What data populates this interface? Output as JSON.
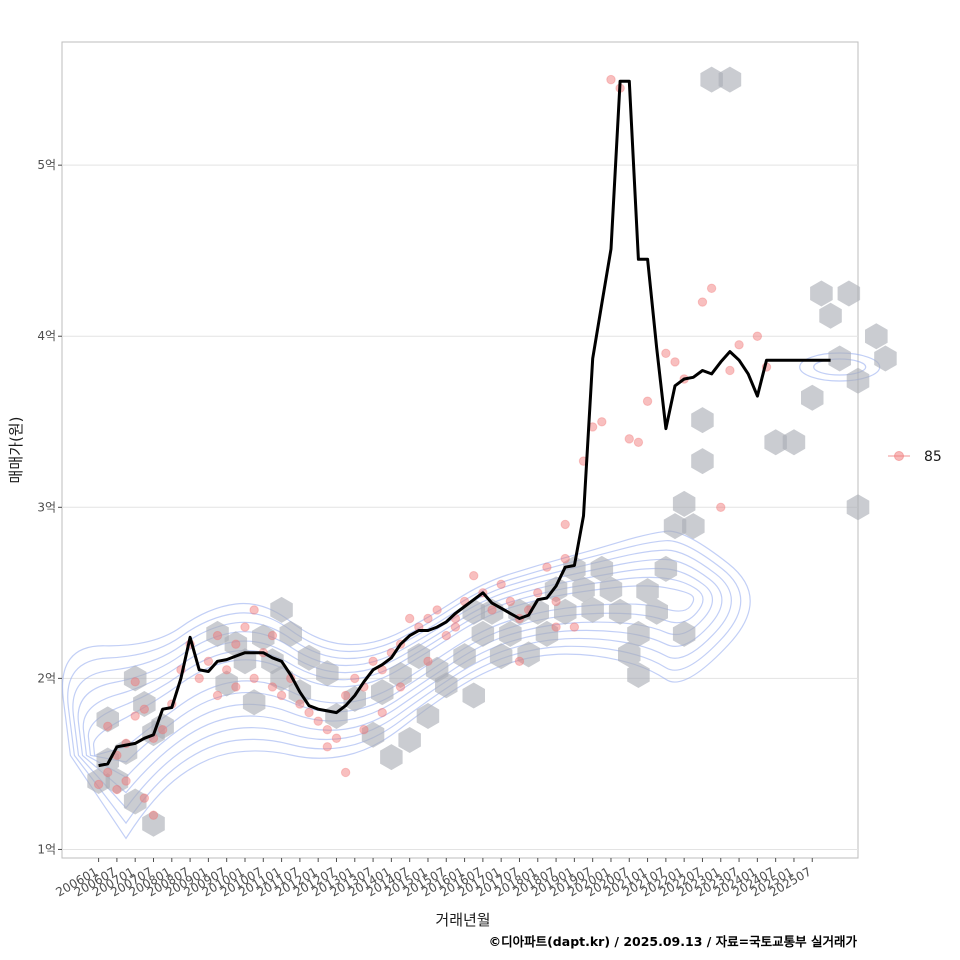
{
  "chart_data": {
    "type": "line",
    "xlabel": "거래년월",
    "ylabel": "매매가(원)",
    "caption": "©디아파트(dapt.kr) / 2025.09.13 / 자료=국토교통부 실거래가",
    "x_ticks": [
      "200601",
      "200607",
      "200701",
      "200707",
      "200801",
      "200807",
      "200901",
      "200907",
      "201001",
      "201007",
      "201101",
      "201107",
      "201201",
      "201207",
      "201301",
      "201307",
      "201401",
      "201407",
      "201501",
      "201507",
      "201601",
      "201607",
      "201701",
      "201707",
      "201801",
      "201807",
      "201901",
      "201907",
      "202001",
      "202007",
      "202101",
      "202107",
      "202201",
      "202207",
      "202301",
      "202307",
      "202401",
      "202407",
      "202501",
      "202507"
    ],
    "y_ticks": [
      {
        "value": 1,
        "label": "1억"
      },
      {
        "value": 2,
        "label": "2억"
      },
      {
        "value": 3,
        "label": "3억"
      },
      {
        "value": 4,
        "label": "4억"
      },
      {
        "value": 5,
        "label": "5억"
      }
    ],
    "xlim": [
      -4,
      83
    ],
    "ylim": [
      0.95,
      5.72
    ],
    "legend": {
      "label": "85",
      "position": "right"
    },
    "series": [
      {
        "name": "moving-average",
        "x": [
          0,
          1,
          2,
          3,
          4,
          5,
          6,
          7,
          8,
          9,
          10,
          11,
          12,
          13,
          14,
          15,
          16,
          17,
          18,
          19,
          20,
          21,
          22,
          23,
          24,
          25,
          26,
          27,
          28,
          29,
          30,
          31,
          32,
          33,
          34,
          35,
          36,
          37,
          38,
          39,
          40,
          41,
          42,
          43,
          44,
          45,
          46,
          47,
          48,
          49,
          50,
          51,
          52,
          53,
          54,
          55,
          56,
          57,
          58,
          59,
          60,
          61,
          62,
          63,
          64,
          65,
          66,
          67,
          68,
          69,
          70,
          71,
          72,
          73,
          74,
          75,
          76,
          77,
          78,
          79,
          80
        ],
        "values": [
          1.49,
          1.5,
          1.6,
          1.61,
          1.62,
          1.65,
          1.67,
          1.82,
          1.83,
          2.0,
          2.24,
          2.05,
          2.04,
          2.1,
          2.11,
          2.13,
          2.15,
          2.15,
          2.15,
          2.12,
          2.1,
          2.02,
          1.92,
          1.84,
          1.82,
          1.81,
          1.8,
          1.84,
          1.9,
          1.98,
          2.05,
          2.08,
          2.12,
          2.2,
          2.25,
          2.28,
          2.28,
          2.3,
          2.33,
          2.38,
          2.42,
          2.46,
          2.5,
          2.44,
          2.41,
          2.38,
          2.35,
          2.37,
          2.46,
          2.47,
          2.54,
          2.65,
          2.66,
          2.95,
          3.87,
          4.19,
          4.51,
          5.49,
          5.49,
          4.45,
          4.45,
          3.93,
          3.46,
          3.71,
          3.75,
          3.76,
          3.8,
          3.78,
          3.85,
          3.91,
          3.86,
          3.78,
          3.65,
          3.86,
          3.86,
          3.86,
          3.86,
          3.86,
          3.86,
          3.86,
          3.86
        ]
      }
    ],
    "transactions": {
      "x": [
        0,
        1,
        1,
        2,
        2,
        3,
        3,
        4,
        4,
        5,
        5,
        6,
        6,
        7,
        8,
        9,
        10,
        11,
        12,
        13,
        13,
        14,
        15,
        15,
        16,
        17,
        17,
        18,
        19,
        19,
        20,
        21,
        22,
        23,
        24,
        25,
        25,
        26,
        27,
        27,
        28,
        29,
        29,
        30,
        31,
        31,
        32,
        33,
        33,
        34,
        35,
        36,
        36,
        37,
        38,
        39,
        39,
        40,
        41,
        42,
        43,
        44,
        45,
        46,
        46,
        47,
        48,
        49,
        50,
        50,
        51,
        51,
        52,
        53,
        54,
        55,
        56,
        57,
        58,
        59,
        60,
        62,
        63,
        64,
        66,
        67,
        68,
        69,
        70,
        72,
        73
      ],
      "values": [
        1.38,
        1.45,
        1.72,
        1.35,
        1.55,
        1.62,
        1.4,
        1.98,
        1.78,
        1.82,
        1.3,
        1.2,
        1.65,
        1.7,
        1.85,
        2.05,
        2.2,
        2.0,
        2.1,
        2.25,
        1.9,
        2.05,
        2.2,
        1.95,
        2.3,
        2.0,
        2.4,
        2.15,
        1.95,
        2.25,
        1.9,
        2.0,
        1.85,
        1.8,
        1.75,
        1.7,
        1.6,
        1.65,
        1.45,
        1.9,
        2.0,
        1.95,
        1.7,
        2.1,
        2.05,
        1.8,
        2.15,
        2.2,
        1.95,
        2.35,
        2.3,
        2.35,
        2.1,
        2.4,
        2.25,
        2.3,
        2.35,
        2.45,
        2.6,
        2.5,
        2.4,
        2.55,
        2.45,
        2.35,
        2.1,
        2.4,
        2.5,
        2.65,
        2.45,
        2.3,
        2.7,
        2.9,
        2.3,
        3.27,
        3.47,
        3.5,
        5.5,
        5.45,
        3.4,
        3.38,
        3.62,
        3.9,
        3.85,
        3.75,
        4.2,
        4.28,
        3.0,
        3.8,
        3.95,
        4.0,
        3.82
      ]
    },
    "hexbins": [
      [
        0,
        1.4
      ],
      [
        1,
        1.76
      ],
      [
        1,
        1.52
      ],
      [
        2,
        1.4
      ],
      [
        3,
        1.57
      ],
      [
        4,
        1.28
      ],
      [
        4,
        2.0
      ],
      [
        5,
        1.85
      ],
      [
        6,
        1.68
      ],
      [
        6,
        1.15
      ],
      [
        7,
        1.72
      ],
      [
        13,
        2.26
      ],
      [
        14,
        1.97
      ],
      [
        15,
        2.2
      ],
      [
        16,
        2.1
      ],
      [
        17,
        1.86
      ],
      [
        18,
        2.24
      ],
      [
        19,
        2.1
      ],
      [
        20,
        2.4
      ],
      [
        20,
        2.0
      ],
      [
        21,
        2.26
      ],
      [
        22,
        1.92
      ],
      [
        23,
        2.12
      ],
      [
        25,
        2.03
      ],
      [
        26,
        1.78
      ],
      [
        28,
        1.88
      ],
      [
        30,
        1.67
      ],
      [
        31,
        1.92
      ],
      [
        32,
        1.54
      ],
      [
        33,
        2.02
      ],
      [
        34,
        1.64
      ],
      [
        35,
        2.13
      ],
      [
        36,
        1.78
      ],
      [
        37,
        2.05
      ],
      [
        38,
        1.96
      ],
      [
        40,
        2.13
      ],
      [
        41,
        1.9
      ],
      [
        41,
        2.39
      ],
      [
        42,
        2.26
      ],
      [
        43,
        2.39
      ],
      [
        44,
        2.13
      ],
      [
        45,
        2.26
      ],
      [
        46,
        2.39
      ],
      [
        47,
        2.14
      ],
      [
        48,
        2.39
      ],
      [
        49,
        2.26
      ],
      [
        50,
        2.52
      ],
      [
        51,
        2.39
      ],
      [
        52,
        2.64
      ],
      [
        53,
        2.52
      ],
      [
        54,
        2.4
      ],
      [
        55,
        2.64
      ],
      [
        56,
        2.52
      ],
      [
        57,
        2.39
      ],
      [
        58,
        2.14
      ],
      [
        59,
        2.26
      ],
      [
        59,
        2.02
      ],
      [
        60,
        2.51
      ],
      [
        61,
        2.39
      ],
      [
        62,
        2.64
      ],
      [
        63,
        2.89
      ],
      [
        64,
        3.02
      ],
      [
        64,
        2.26
      ],
      [
        65,
        2.89
      ],
      [
        66,
        3.27
      ],
      [
        66,
        3.51
      ],
      [
        67,
        5.5
      ],
      [
        69,
        5.5
      ],
      [
        74,
        3.38
      ],
      [
        76,
        3.38
      ],
      [
        78,
        3.64
      ],
      [
        79,
        4.25
      ],
      [
        80,
        4.12
      ],
      [
        81,
        3.87
      ],
      [
        82,
        4.25
      ],
      [
        83,
        3.74
      ],
      [
        83,
        3.0
      ],
      [
        85,
        4.0
      ],
      [
        86,
        3.87
      ]
    ]
  }
}
